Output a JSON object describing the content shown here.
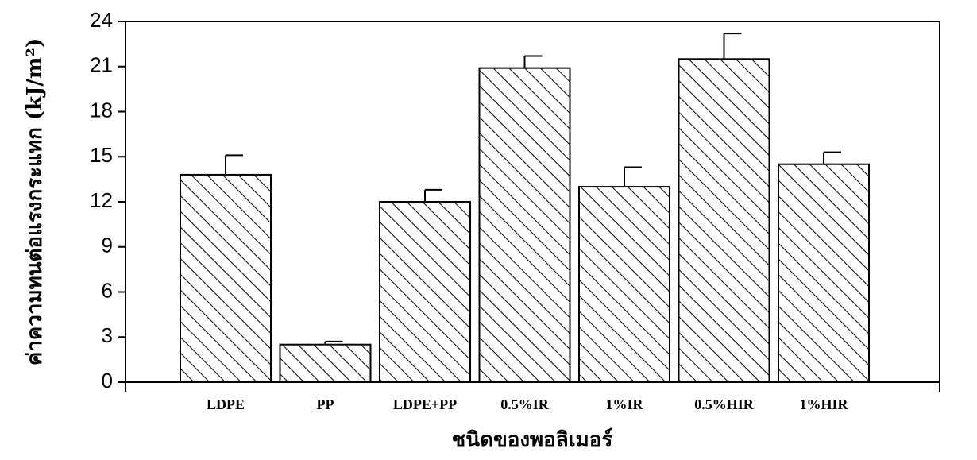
{
  "chart_data": {
    "type": "bar",
    "ylabel": "ค่าความทนต่อแรงกระแทก (kJ/m²)",
    "xlabel": "ชนิดของพอลิเมอร์",
    "categories": [
      "LDPE",
      "PP",
      "LDPE+PP",
      "0.5%IR",
      "1%IR",
      "0.5%HIR",
      "1%HIR"
    ],
    "values": [
      13.8,
      2.5,
      12.0,
      20.9,
      13.0,
      21.5,
      14.5
    ],
    "errors": [
      1.3,
      0.2,
      0.8,
      0.8,
      1.3,
      1.7,
      0.8
    ],
    "color": "#000000",
    "ylim": [
      0,
      24
    ],
    "yticks": [
      0,
      3,
      6,
      9,
      12,
      15,
      18,
      21,
      24
    ]
  }
}
